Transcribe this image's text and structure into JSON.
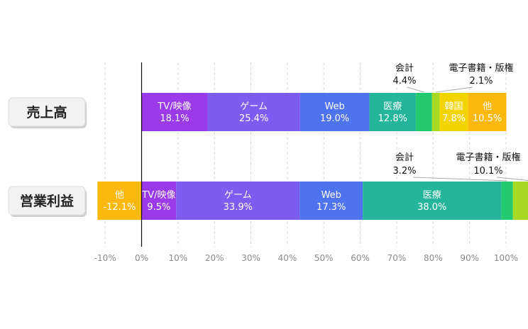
{
  "chart_data": {
    "type": "bar",
    "stacked": true,
    "orientation": "horizontal",
    "categories": [
      "売上高",
      "営業利益"
    ],
    "xlim": [
      -10,
      100
    ],
    "x_ticks": [
      "-10%",
      "0%",
      "10%",
      "20%",
      "30%",
      "40%",
      "50%",
      "60%",
      "70%",
      "80%",
      "90%",
      "100%"
    ],
    "grid": true,
    "rows": [
      {
        "category": "売上高",
        "segments": [
          {
            "name": "TV/映像",
            "value": 18.1,
            "label": "18.1%",
            "color": "#9A3AE8",
            "label_pos": "inside"
          },
          {
            "name": "ゲーム",
            "value": 25.4,
            "label": "25.4%",
            "color": "#7D5CF0",
            "label_pos": "inside"
          },
          {
            "name": "Web",
            "value": 19.0,
            "label": "19.0%",
            "color": "#4F73EE",
            "label_pos": "inside"
          },
          {
            "name": "医療",
            "value": 12.8,
            "label": "12.8%",
            "color": "#25B59B",
            "label_pos": "inside"
          },
          {
            "name": "会計",
            "value": 4.4,
            "label": "4.4%",
            "color": "#22C96E",
            "label_pos": "callout"
          },
          {
            "name": "電子書籍・版権",
            "value": 2.1,
            "label": "2.1%",
            "color": "#A8D926",
            "label_pos": "callout"
          },
          {
            "name": "韓国",
            "value": 7.8,
            "label": "7.8%",
            "color": "#F2D400",
            "label_pos": "inside"
          },
          {
            "name": "他",
            "value": 10.5,
            "label": "10.5%",
            "color": "#FBB80F",
            "label_pos": "inside"
          }
        ]
      },
      {
        "category": "営業利益",
        "segments": [
          {
            "name": "他",
            "value": -12.1,
            "label": "-12.1%",
            "color": "#FBB80F",
            "label_pos": "inside"
          },
          {
            "name": "TV/映像",
            "value": 9.5,
            "label": "9.5%",
            "color": "#9A3AE8",
            "label_pos": "inside"
          },
          {
            "name": "ゲーム",
            "value": 33.9,
            "label": "33.9%",
            "color": "#7D5CF0",
            "label_pos": "inside"
          },
          {
            "name": "Web",
            "value": 17.3,
            "label": "17.3%",
            "color": "#4F73EE",
            "label_pos": "inside"
          },
          {
            "name": "医療",
            "value": 38.0,
            "label": "38.0%",
            "color": "#25B59B",
            "label_pos": "inside"
          },
          {
            "name": "会計",
            "value": 3.2,
            "label": "3.2%",
            "color": "#22C96E",
            "label_pos": "callout"
          },
          {
            "name": "電子書籍・版権",
            "value": 10.1,
            "label": "10.1%",
            "color": "#A8D926",
            "label_pos": "callout"
          }
        ]
      }
    ]
  }
}
